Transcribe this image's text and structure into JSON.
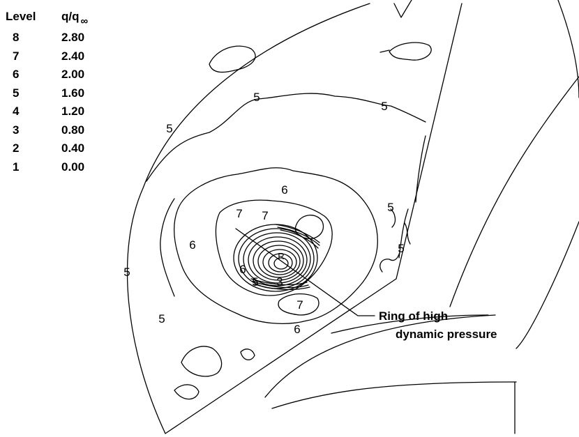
{
  "legend": {
    "header_level": "Level",
    "header_q": "q/q",
    "header_q_sub": "∞",
    "rows": [
      {
        "level": "8",
        "value": "2.80"
      },
      {
        "level": "7",
        "value": "2.40"
      },
      {
        "level": "6",
        "value": "2.00"
      },
      {
        "level": "5",
        "value": "1.60"
      },
      {
        "level": "4",
        "value": "1.20"
      },
      {
        "level": "3",
        "value": "0.80"
      },
      {
        "level": "2",
        "value": "0.40"
      },
      {
        "level": "1",
        "value": "0.00"
      }
    ]
  },
  "contour_labels": [
    "5",
    "5",
    "5",
    "5",
    "6",
    "5",
    "5",
    "6",
    "7",
    "7",
    "R",
    "6",
    "5",
    "3",
    "5",
    "7",
    "6",
    "5"
  ],
  "annotation": {
    "line1": "Ring of high",
    "line2": "dynamic pressure"
  }
}
